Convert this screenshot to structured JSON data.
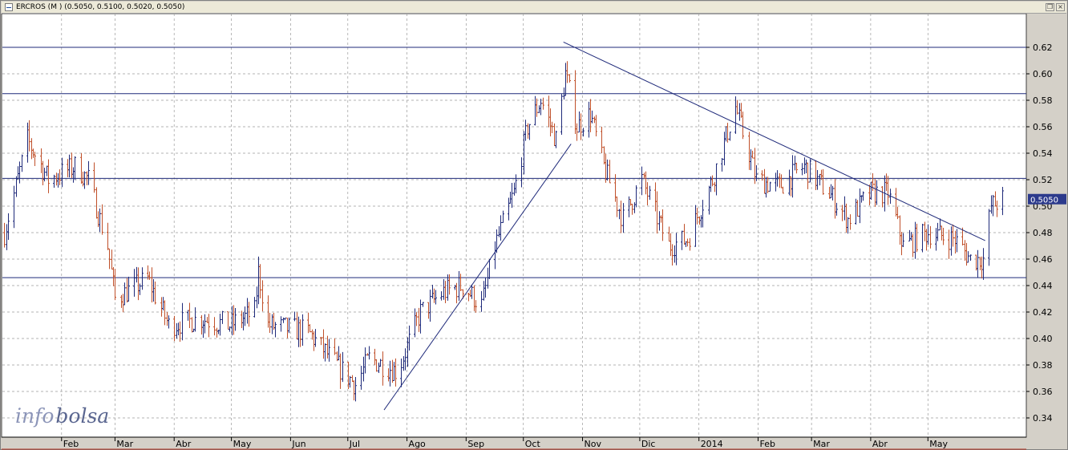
{
  "window": {
    "title": "ERCROS (M ) (0.5050, 0.5100, 0.5020, 0.5050)",
    "restore_symbol": "❐",
    "close_symbol": "×"
  },
  "watermark": {
    "part1": "info",
    "part2": "bolsa",
    "color1": "#8c95b8",
    "color2": "#5a6690"
  },
  "colors": {
    "up_bar": "#1f2a7a",
    "down_bar": "#c0502a",
    "trendline": "#1f2a7a",
    "grid": "#9a9a9a",
    "price_tag_bg": "#2c3a8c"
  },
  "chart_data": {
    "type": "ohlc",
    "ylim": [
      0.33,
      0.64
    ],
    "y_ticks": [
      "0.34",
      "0.36",
      "0.38",
      "0.40",
      "0.42",
      "0.44",
      "0.46",
      "0.48",
      "0.50",
      "0.52",
      "0.54",
      "0.56",
      "0.58",
      "0.60",
      "0.62"
    ],
    "x_labels": [
      "Feb",
      "Mar",
      "Abr",
      "May",
      "Jun",
      "Jul",
      "Ago",
      "Sep",
      "Oct",
      "Nov",
      "Dic",
      "2014",
      "Feb",
      "Mar",
      "Abr",
      "May"
    ],
    "last_price_label": "0.5050",
    "last_price": 0.505,
    "horizontal_lines": [
      0.62,
      0.585,
      0.521,
      0.446
    ],
    "trendlines": [
      {
        "from": [
          0.346,
          "Jul 20 2013"
        ],
        "to": [
          0.547,
          "Oct 26 2013"
        ]
      },
      {
        "from": [
          0.624,
          "Oct 22 2013"
        ],
        "to": [
          0.474,
          "May 31 2014"
        ]
      }
    ],
    "price_path": [
      [
        "Jan 2 2013",
        0.48
      ],
      [
        "Jan 14 2013",
        0.55
      ],
      [
        "Jan 25 2013",
        0.52
      ],
      [
        "Feb 8 2013",
        0.53
      ],
      [
        "Feb 15 2013",
        0.52
      ],
      [
        "Feb 25 2013",
        0.47
      ],
      [
        "Mar 1 2013",
        0.43
      ],
      [
        "Mar 18 2013",
        0.445
      ],
      [
        "Mar 29 2013",
        0.41
      ],
      [
        "Apr 15 2013",
        0.415
      ],
      [
        "Apr 30 2013",
        0.41
      ],
      [
        "May 13 2013",
        0.42
      ],
      [
        "May 15 2013",
        0.45
      ],
      [
        "May 20 2013",
        0.41
      ],
      [
        "Jun 10 2013",
        0.405
      ],
      [
        "Jun 25 2013",
        0.38
      ],
      [
        "Jul 5 2013",
        0.365
      ],
      [
        "Jul 12 2013",
        0.385
      ],
      [
        "Jul 27 2013",
        0.375
      ],
      [
        "Aug 8 2013",
        0.42
      ],
      [
        "Aug 20 2013",
        0.435
      ],
      [
        "Aug 30 2013",
        0.44
      ],
      [
        "Sep 9 2013",
        0.425
      ],
      [
        "Sep 16 2013",
        0.47
      ],
      [
        "Sep 26 2013",
        0.51
      ],
      [
        "Oct 3 2013",
        0.56
      ],
      [
        "Oct 10 2013",
        0.58
      ],
      [
        "Oct 18 2013",
        0.55
      ],
      [
        "Oct 23 2013",
        0.6
      ],
      [
        "Oct 29 2013",
        0.56
      ],
      [
        "Nov 5 2013",
        0.57
      ],
      [
        "Nov 12 2013",
        0.53
      ],
      [
        "Nov 22 2013",
        0.49
      ],
      [
        "Dec 2 2013",
        0.52
      ],
      [
        "Dec 16 2013",
        0.47
      ],
      [
        "Dec 26 2013",
        0.475
      ],
      [
        "Jan 8 2014",
        0.52
      ],
      [
        "Jan 20 2014",
        0.575
      ],
      [
        "Jan 31 2014",
        0.52
      ],
      [
        "Feb 12 2014",
        0.515
      ],
      [
        "Feb 25 2014",
        0.53
      ],
      [
        "Mar 10 2014",
        0.51
      ],
      [
        "Mar 20 2014",
        0.49
      ],
      [
        "Apr 1 2014",
        0.51
      ],
      [
        "Apr 10 2014",
        0.51
      ],
      [
        "Apr 18 2014",
        0.47
      ],
      [
        "May 1 2014",
        0.48
      ],
      [
        "May 15 2014",
        0.475
      ],
      [
        "May 23 2014",
        0.46
      ],
      [
        "May 30 2014",
        0.46
      ],
      [
        "Jun 3 2014",
        0.5
      ],
      [
        "Jun 9 2014",
        0.505
      ]
    ]
  }
}
